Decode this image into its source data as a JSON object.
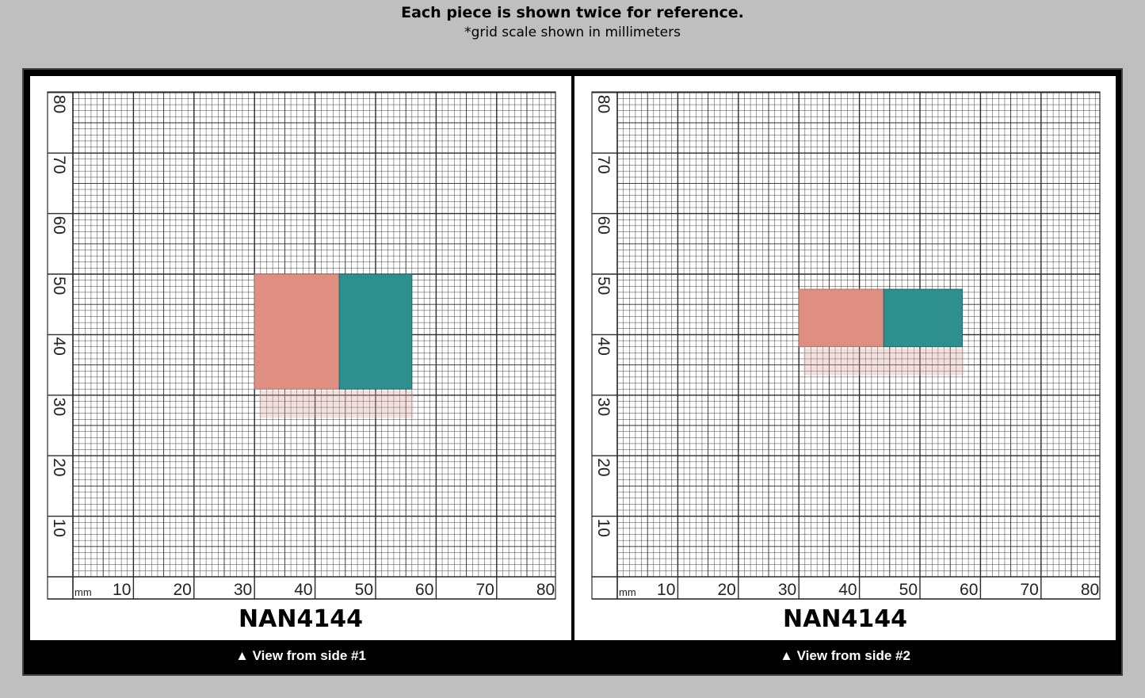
{
  "header": {
    "title": "Each piece is shown twice for reference.",
    "subtitle": "*grid scale shown in millimeters"
  },
  "scale": {
    "unit_label": "mm",
    "x_labels": [
      "10",
      "20",
      "30",
      "40",
      "50",
      "60",
      "70",
      "80"
    ],
    "y_labels": [
      "10",
      "20",
      "30",
      "40",
      "50",
      "60",
      "70",
      "80"
    ]
  },
  "colors": {
    "background": "#bfbfbf",
    "frame": "#000000",
    "grid_line": "#2a2a2a",
    "piece_pink": "#df8f82",
    "piece_teal": "#2e8f8f"
  },
  "panels": [
    {
      "code": "NAN4144",
      "caption": "▲ View from side #1",
      "piece": {
        "x0": 30,
        "x1": 56,
        "y0": 31,
        "y1": 50,
        "split": 44
      }
    },
    {
      "code": "NAN4144",
      "caption": "▲ View from side #2",
      "piece": {
        "x0": 30,
        "x1": 57,
        "y0": 38,
        "y1": 47.5,
        "split": 44
      }
    }
  ]
}
